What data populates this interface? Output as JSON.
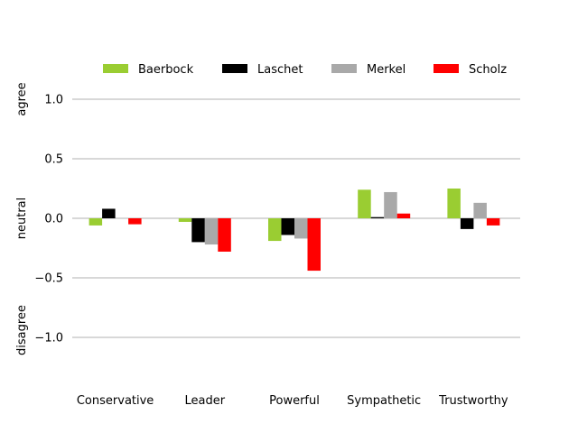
{
  "chart_data": {
    "type": "bar",
    "categories": [
      "Conservative",
      "Leader",
      "Powerful",
      "Sympathetic",
      "Trustworthy"
    ],
    "series": [
      {
        "name": "Baerbock",
        "color": "#9acd32",
        "values": [
          -0.06,
          -0.03,
          -0.19,
          0.24,
          0.25
        ]
      },
      {
        "name": "Laschet",
        "color": "#000000",
        "values": [
          0.08,
          -0.2,
          -0.14,
          0.01,
          -0.09
        ]
      },
      {
        "name": "Merkel",
        "color": "#a9a9a9",
        "values": [
          0.0,
          -0.22,
          -0.17,
          0.22,
          0.13
        ]
      },
      {
        "name": "Scholz",
        "color": "#ff0000",
        "values": [
          -0.05,
          -0.28,
          -0.44,
          0.04,
          -0.06
        ]
      }
    ],
    "yticks": [
      1.0,
      0.5,
      0.0,
      -0.5,
      -1.0
    ],
    "ytick_labels": [
      "1.0",
      "0.5",
      "0.0",
      "−0.5",
      "−1.0"
    ],
    "ylim": [
      -1.4,
      1.25
    ],
    "y_side_labels": {
      "agree": "agree",
      "neutral": "neutral",
      "disagree": "disagree"
    },
    "grid": "horizontal",
    "legend_position": "top"
  }
}
